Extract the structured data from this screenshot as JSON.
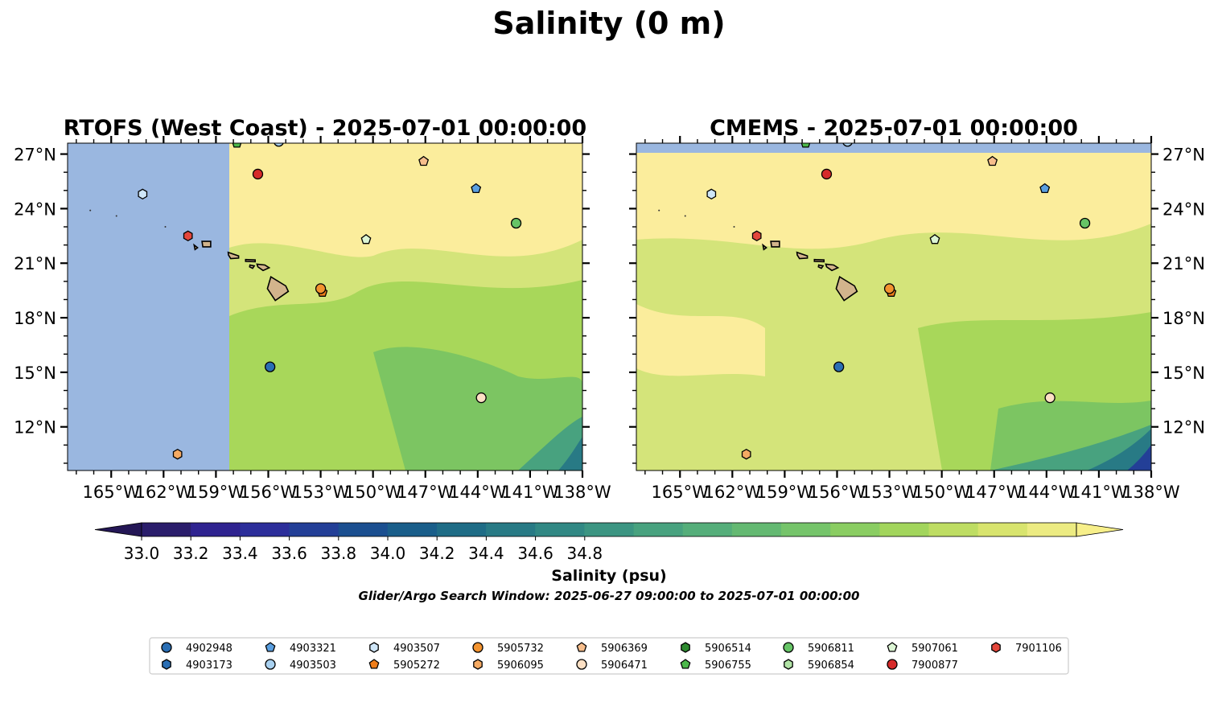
{
  "figure": {
    "title": "Salinity (0 m)",
    "subtitle": "Glider/Argo Search Window: 2025-06-27 09:00:00 to 2025-07-01 00:00:00"
  },
  "panels": [
    {
      "title": "RTOFS (West Coast) - 2025-07-01 00:00:00"
    },
    {
      "title": "CMEMS - 2025-07-01 00:00:00"
    }
  ],
  "map_axes": {
    "lon_ticks": [
      "165°W",
      "162°W",
      "159°W",
      "156°W",
      "153°W",
      "150°W",
      "147°W",
      "144°W",
      "141°W",
      "138°W"
    ],
    "lat_ticks": [
      "27°N",
      "24°N",
      "21°N",
      "18°N",
      "15°N",
      "12°N"
    ]
  },
  "colorbar": {
    "label": "Salinity (psu)",
    "ticks": [
      "33.0",
      "33.2",
      "33.4",
      "33.6",
      "33.8",
      "34.0",
      "34.2",
      "34.4",
      "34.6",
      "34.8"
    ],
    "colors": [
      "#2a1d6b",
      "#2f2390",
      "#2c2e9a",
      "#233f97",
      "#1b4f90",
      "#1a5e8a",
      "#1f6c86",
      "#287a85",
      "#318884",
      "#3c9582",
      "#48a27f",
      "#55ae7a",
      "#64b972",
      "#75c46a",
      "#8acd62",
      "#a2d55c",
      "#bedd63",
      "#d8e46e",
      "#eceb82"
    ]
  },
  "colors": {
    "land": "#d2b48c",
    "no_data": "#9ab7e0",
    "salinity_high": "#fbed9c",
    "salinity_mid": "#d4e47a",
    "salinity_green": "#a8d75a",
    "salinity_teal": "#7cc562"
  },
  "legend": [
    {
      "label": "4902948",
      "marker": "circle",
      "color": "#2a6eb4"
    },
    {
      "label": "4903173",
      "marker": "hexagon",
      "color": "#2a6eb4"
    },
    {
      "label": "4903321",
      "marker": "pentagon",
      "color": "#5a9fe0"
    },
    {
      "label": "4903503",
      "marker": "circle",
      "color": "#a9d1f0"
    },
    {
      "label": "4903507",
      "marker": "hexagon",
      "color": "#cfe6f8"
    },
    {
      "label": "5905272",
      "marker": "pentagon",
      "color": "#f07e1a"
    },
    {
      "label": "5905732",
      "marker": "circle",
      "color": "#f3932f"
    },
    {
      "label": "5906095",
      "marker": "hexagon",
      "color": "#f5aa63"
    },
    {
      "label": "5906369",
      "marker": "pentagon",
      "color": "#f7be8c"
    },
    {
      "label": "5906471",
      "marker": "circle",
      "color": "#fde0c4"
    },
    {
      "label": "5906514",
      "marker": "hexagon",
      "color": "#2e8b30"
    },
    {
      "label": "5906755",
      "marker": "pentagon",
      "color": "#4cb84a"
    },
    {
      "label": "5906811",
      "marker": "circle",
      "color": "#66c466"
    },
    {
      "label": "5906854",
      "marker": "hexagon",
      "color": "#b1e3a6"
    },
    {
      "label": "5907061",
      "marker": "pentagon",
      "color": "#dcf5d4"
    },
    {
      "label": "7900877",
      "marker": "circle",
      "color": "#d62a2a"
    },
    {
      "label": "7901106",
      "marker": "hexagon",
      "color": "#e4473c"
    }
  ]
}
